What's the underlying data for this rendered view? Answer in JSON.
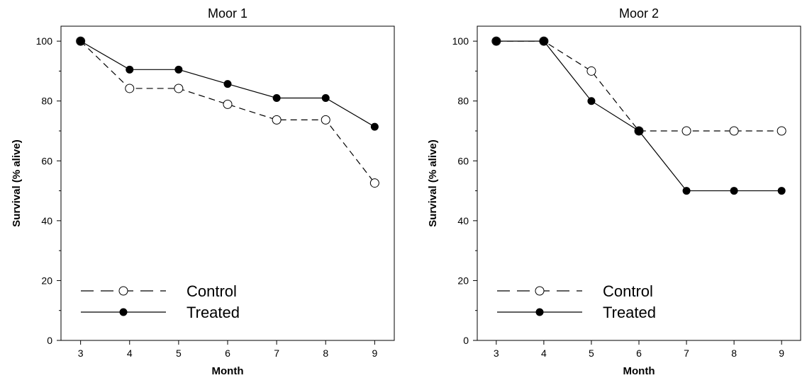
{
  "chart_data": [
    {
      "type": "line",
      "title": "Moor 1",
      "xlabel": "Month",
      "ylabel": "Survival (% alive)",
      "x": [
        3,
        4,
        5,
        6,
        7,
        8,
        9
      ],
      "xlim": [
        2.6,
        9.4
      ],
      "ylim": [
        0,
        105
      ],
      "yticks": [
        0,
        20,
        40,
        60,
        80,
        100
      ],
      "xticks": [
        3,
        4,
        5,
        6,
        7,
        8,
        9
      ],
      "grid": false,
      "legend_position": "bottom-left",
      "series": [
        {
          "name": "Control",
          "marker": "open-circle",
          "line": "dashed",
          "values": [
            100,
            84.2,
            84.2,
            78.9,
            73.7,
            73.7,
            52.6
          ]
        },
        {
          "name": "Treated",
          "marker": "filled-circle",
          "line": "solid",
          "values": [
            100,
            90.5,
            90.5,
            85.7,
            81.0,
            81.0,
            71.4
          ]
        }
      ]
    },
    {
      "type": "line",
      "title": "Moor 2",
      "xlabel": "Month",
      "ylabel": "Survival (% alive)",
      "x": [
        3,
        4,
        5,
        6,
        7,
        8,
        9
      ],
      "xlim": [
        2.6,
        9.4
      ],
      "ylim": [
        0,
        105
      ],
      "yticks": [
        0,
        20,
        40,
        60,
        80,
        100
      ],
      "xticks": [
        3,
        4,
        5,
        6,
        7,
        8,
        9
      ],
      "grid": false,
      "legend_position": "bottom-left",
      "series": [
        {
          "name": "Control",
          "marker": "open-circle",
          "line": "dashed",
          "values": [
            100,
            100,
            90,
            70,
            70,
            70,
            70
          ]
        },
        {
          "name": "Treated",
          "marker": "filled-circle",
          "line": "solid",
          "values": [
            100,
            100,
            80,
            70,
            50,
            50,
            50
          ]
        }
      ]
    }
  ],
  "colors": {
    "line": "#000000",
    "open_marker_fill": "#ffffff",
    "filled_marker_fill": "#000000"
  }
}
